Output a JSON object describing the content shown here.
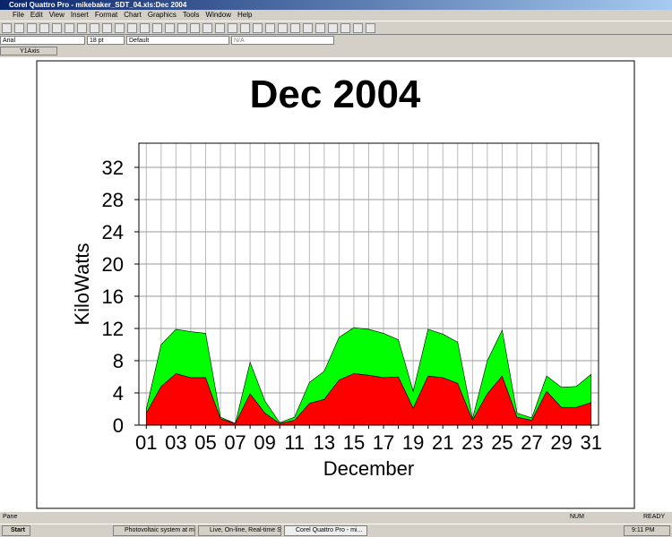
{
  "window": {
    "title": "Corel Quattro Pro - mikebaker_SDT_04.xls:Dec 2004",
    "menu": [
      "File",
      "Edit",
      "View",
      "Insert",
      "Format",
      "Chart",
      "Graphics",
      "Tools",
      "Window",
      "Help"
    ],
    "font": "Arial",
    "font_size": "18 pt",
    "style": "Default",
    "value": "N/A",
    "selection": "Y1Axis",
    "status_left": "Pane",
    "status_num": "NUM",
    "status_ready": "READY"
  },
  "taskbar": {
    "start": "Start",
    "tasks": [
      "Photovoltaic system at m...",
      "Live, On-line, Real-time S...",
      "Corel Quattro Pro - mi..."
    ],
    "clock": "9:11 PM"
  },
  "chart_data": {
    "type": "stacked_area",
    "title": "Dec 2004",
    "x_label": "December",
    "y_label": "KiloWatts",
    "categories": [
      "01",
      null,
      "03",
      null,
      "05",
      null,
      "07",
      null,
      "09",
      null,
      "11",
      null,
      "13",
      null,
      "15",
      null,
      "17",
      null,
      "19",
      null,
      "21",
      null,
      "23",
      null,
      "25",
      null,
      "27",
      null,
      "29",
      null,
      "31"
    ],
    "series": [
      {
        "color": "#ff0000",
        "values": [
          1.5,
          4.8,
          6.4,
          5.9,
          5.9,
          0.8,
          0.2,
          3.9,
          1.5,
          0.2,
          0.6,
          2.7,
          3.2,
          5.6,
          6.4,
          6.2,
          5.9,
          6.0,
          2.1,
          6.1,
          5.9,
          5.2,
          0.6,
          3.9,
          6.1,
          1.0,
          0.6,
          4.2,
          2.2,
          2.2,
          2.8
        ]
      },
      {
        "color": "#00ff00",
        "values": [
          0.5,
          5.2,
          5.5,
          5.7,
          5.5,
          0.2,
          0,
          3.9,
          1.5,
          0.1,
          0.4,
          2.6,
          3.5,
          5.3,
          5.7,
          5.7,
          5.5,
          4.6,
          2.1,
          5.8,
          5.4,
          5.1,
          0.2,
          4.1,
          5.7,
          0.5,
          0.3,
          1.9,
          2.5,
          2.6,
          3.5
        ]
      }
    ],
    "ylim": [
      0,
      35
    ],
    "yticks": [
      0,
      4,
      8,
      12,
      16,
      20,
      24,
      28,
      32
    ],
    "grid": true
  }
}
